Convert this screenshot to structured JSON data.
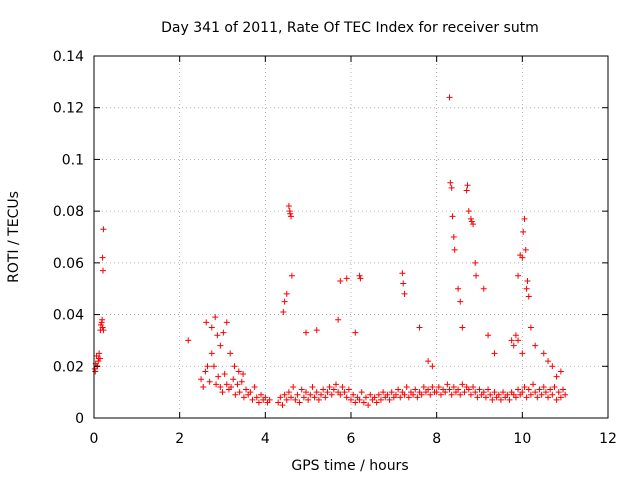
{
  "chart_data": {
    "type": "scatter",
    "title": "Day 341 of 2011, Rate Of TEC Index for receiver sutm",
    "xlabel": "GPS time / hours",
    "ylabel": "ROTI / TECUs",
    "xlim": [
      0,
      12
    ],
    "ylim": [
      0,
      0.14
    ],
    "xticks": [
      "0",
      "2",
      "4",
      "6",
      "8",
      "10",
      "12"
    ],
    "yticks": [
      "0",
      "0.02",
      "0.04",
      "0.06",
      "0.08",
      "0.1",
      "0.12",
      "0.14"
    ],
    "grid": true,
    "marker": "+",
    "color": "#ff0000",
    "series": [
      {
        "name": "ROTI",
        "x": [
          0.02,
          0.04,
          0.06,
          0.08,
          0.1,
          0.12,
          0.14,
          0.16,
          0.18,
          0.2,
          0.03,
          0.07,
          0.11,
          0.15,
          0.19,
          0.22,
          0.2,
          0.21,
          0.22,
          2.2,
          2.5,
          2.55,
          2.6,
          2.65,
          2.7,
          2.75,
          2.8,
          2.85,
          2.9,
          2.95,
          3.0,
          3.05,
          3.1,
          3.15,
          3.2,
          3.25,
          3.3,
          3.35,
          3.4,
          3.45,
          3.5,
          3.55,
          3.6,
          3.65,
          3.7,
          3.75,
          3.8,
          3.85,
          3.9,
          3.95,
          4.0,
          4.05,
          4.1,
          2.62,
          2.75,
          2.83,
          2.88,
          2.95,
          3.02,
          3.1,
          3.18,
          3.28,
          3.38,
          3.48,
          4.3,
          4.35,
          4.4,
          4.45,
          4.5,
          4.55,
          4.6,
          4.65,
          4.7,
          4.75,
          4.8,
          4.85,
          4.9,
          4.95,
          5.0,
          5.05,
          5.1,
          5.15,
          5.2,
          5.25,
          5.3,
          5.35,
          5.4,
          5.45,
          5.5,
          5.55,
          5.6,
          5.65,
          5.7,
          5.75,
          5.8,
          5.85,
          5.9,
          5.95,
          4.42,
          4.55,
          4.57,
          4.58,
          4.6,
          4.62,
          4.5,
          4.45,
          4.95,
          5.2,
          5.7,
          5.75,
          5.9,
          6.2,
          6.22,
          6.1,
          6.0,
          6.05,
          6.1,
          6.15,
          6.2,
          6.25,
          6.3,
          6.35,
          6.4,
          6.45,
          6.5,
          6.55,
          6.6,
          6.65,
          6.7,
          6.75,
          6.8,
          6.85,
          6.9,
          6.95,
          7.0,
          7.05,
          7.1,
          7.15,
          7.2,
          7.25,
          7.3,
          7.35,
          7.4,
          7.45,
          7.5,
          7.55,
          7.6,
          7.65,
          7.7,
          7.75,
          7.8,
          7.85,
          7.9,
          7.95,
          7.2,
          7.22,
          7.25,
          7.6,
          7.8,
          7.9,
          8.0,
          8.05,
          8.1,
          8.15,
          8.2,
          8.25,
          8.3,
          8.35,
          8.4,
          8.45,
          8.5,
          8.55,
          8.6,
          8.65,
          8.7,
          8.75,
          8.8,
          8.85,
          8.9,
          8.95,
          9.0,
          9.05,
          9.1,
          9.15,
          9.2,
          9.25,
          9.3,
          9.35,
          9.4,
          9.45,
          9.5,
          9.55,
          9.6,
          9.65,
          9.7,
          9.75,
          9.8,
          9.85,
          9.9,
          9.95,
          8.3,
          8.32,
          8.35,
          8.37,
          8.4,
          8.42,
          8.5,
          8.55,
          8.7,
          8.72,
          8.75,
          8.8,
          8.82,
          8.85,
          8.9,
          8.92,
          8.6,
          9.1,
          9.2,
          9.35,
          9.75,
          9.8,
          9.85,
          9.9,
          9.95,
          10.0,
          10.02,
          10.05,
          10.08,
          10.1,
          10.12,
          10.15,
          10.2,
          9.9,
          10.0,
          10.0,
          10.05,
          10.1,
          10.15,
          10.2,
          10.25,
          10.3,
          10.35,
          10.4,
          10.45,
          10.5,
          10.55,
          10.6,
          10.65,
          10.7,
          10.75,
          10.8,
          10.85,
          10.9,
          10.95,
          11.0,
          10.3,
          10.5,
          10.7,
          10.9,
          10.6,
          10.8
        ],
        "y": [
          0.019,
          0.021,
          0.024,
          0.02,
          0.022,
          0.025,
          0.023,
          0.036,
          0.037,
          0.035,
          0.018,
          0.02,
          0.023,
          0.034,
          0.038,
          0.073,
          0.062,
          0.057,
          0.034,
          0.03,
          0.015,
          0.012,
          0.018,
          0.02,
          0.014,
          0.025,
          0.02,
          0.013,
          0.016,
          0.012,
          0.01,
          0.017,
          0.013,
          0.011,
          0.012,
          0.015,
          0.009,
          0.013,
          0.01,
          0.014,
          0.008,
          0.011,
          0.009,
          0.01,
          0.007,
          0.012,
          0.008,
          0.006,
          0.009,
          0.007,
          0.008,
          0.006,
          0.007,
          0.037,
          0.035,
          0.039,
          0.032,
          0.028,
          0.033,
          0.037,
          0.025,
          0.02,
          0.018,
          0.017,
          0.006,
          0.008,
          0.005,
          0.009,
          0.007,
          0.01,
          0.008,
          0.012,
          0.007,
          0.009,
          0.006,
          0.011,
          0.008,
          0.01,
          0.007,
          0.009,
          0.012,
          0.008,
          0.01,
          0.007,
          0.009,
          0.011,
          0.008,
          0.01,
          0.012,
          0.009,
          0.011,
          0.013,
          0.01,
          0.009,
          0.012,
          0.01,
          0.008,
          0.011,
          0.041,
          0.082,
          0.08,
          0.079,
          0.078,
          0.055,
          0.048,
          0.045,
          0.033,
          0.034,
          0.038,
          0.053,
          0.054,
          0.055,
          0.054,
          0.033,
          0.007,
          0.009,
          0.006,
          0.008,
          0.007,
          0.01,
          0.006,
          0.008,
          0.005,
          0.009,
          0.007,
          0.008,
          0.006,
          0.009,
          0.007,
          0.01,
          0.008,
          0.009,
          0.007,
          0.01,
          0.008,
          0.009,
          0.011,
          0.008,
          0.01,
          0.009,
          0.012,
          0.008,
          0.01,
          0.009,
          0.011,
          0.008,
          0.01,
          0.009,
          0.012,
          0.01,
          0.011,
          0.009,
          0.012,
          0.01,
          0.056,
          0.052,
          0.048,
          0.035,
          0.022,
          0.02,
          0.01,
          0.012,
          0.009,
          0.011,
          0.01,
          0.013,
          0.011,
          0.009,
          0.012,
          0.01,
          0.011,
          0.009,
          0.013,
          0.01,
          0.012,
          0.011,
          0.009,
          0.012,
          0.01,
          0.008,
          0.011,
          0.009,
          0.01,
          0.008,
          0.011,
          0.009,
          0.007,
          0.01,
          0.008,
          0.009,
          0.007,
          0.01,
          0.008,
          0.009,
          0.007,
          0.01,
          0.009,
          0.008,
          0.011,
          0.009,
          0.124,
          0.091,
          0.089,
          0.078,
          0.07,
          0.065,
          0.05,
          0.045,
          0.088,
          0.09,
          0.08,
          0.077,
          0.076,
          0.075,
          0.06,
          0.055,
          0.035,
          0.05,
          0.032,
          0.025,
          0.03,
          0.028,
          0.032,
          0.055,
          0.063,
          0.062,
          0.072,
          0.077,
          0.065,
          0.05,
          0.053,
          0.047,
          0.035,
          0.03,
          0.025,
          0.01,
          0.012,
          0.008,
          0.011,
          0.009,
          0.013,
          0.01,
          0.008,
          0.011,
          0.009,
          0.012,
          0.01,
          0.008,
          0.011,
          0.009,
          0.012,
          0.007,
          0.01,
          0.008,
          0.011,
          0.009,
          0.028,
          0.025,
          0.02,
          0.018,
          0.022,
          0.016
        ]
      }
    ]
  }
}
